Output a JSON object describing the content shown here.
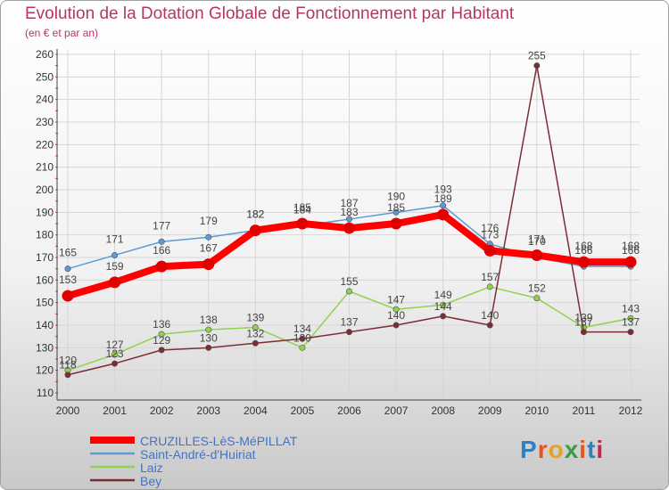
{
  "title": "Evolution de la Dotation Globale de Fonctionnement par Habitant",
  "subtitle": "(en € et par an)",
  "logo": {
    "text": "Proxiti",
    "letters": [
      "P",
      "r",
      "o",
      "x",
      "i",
      "t",
      "i"
    ],
    "colors": [
      "#2f7fc1",
      "#e8541d",
      "#e8a21d",
      "#3b9c3b",
      "#e8541d",
      "#2f7fc1",
      "#c4264d"
    ]
  },
  "chart_data": {
    "type": "line",
    "title": "Evolution de la Dotation Globale de Fonctionnement par Habitant",
    "ylabel": "(en € et par an)",
    "ylim": [
      110,
      260
    ],
    "yticks": [
      110,
      120,
      130,
      140,
      150,
      160,
      170,
      180,
      190,
      200,
      210,
      220,
      230,
      240,
      250,
      260
    ],
    "categories": [
      "2000",
      "2001",
      "2002",
      "2003",
      "2004",
      "2005",
      "2006",
      "2007",
      "2008",
      "2009",
      "2010",
      "2011",
      "2012"
    ],
    "series": [
      {
        "name": "CRUZILLES-LèS-MéPILLAT",
        "color": "#ff0000",
        "values": [
          153,
          159,
          166,
          167,
          182,
          185,
          183,
          185,
          189,
          173,
          171,
          168,
          168
        ]
      },
      {
        "name": "Saint-André-d'Huiriat",
        "color": "#5a9bd5",
        "values": [
          165,
          171,
          177,
          179,
          182,
          184,
          187,
          190,
          193,
          176,
          170,
          166,
          166
        ]
      },
      {
        "name": "Laiz",
        "color": "#92d050",
        "values": [
          120,
          127,
          136,
          138,
          139,
          130,
          155,
          147,
          149,
          157,
          152,
          139,
          143
        ]
      },
      {
        "name": "Bey",
        "color": "#7b2d35",
        "values": [
          118,
          123,
          129,
          130,
          132,
          134,
          137,
          140,
          144,
          140,
          255,
          137,
          137
        ]
      }
    ]
  }
}
